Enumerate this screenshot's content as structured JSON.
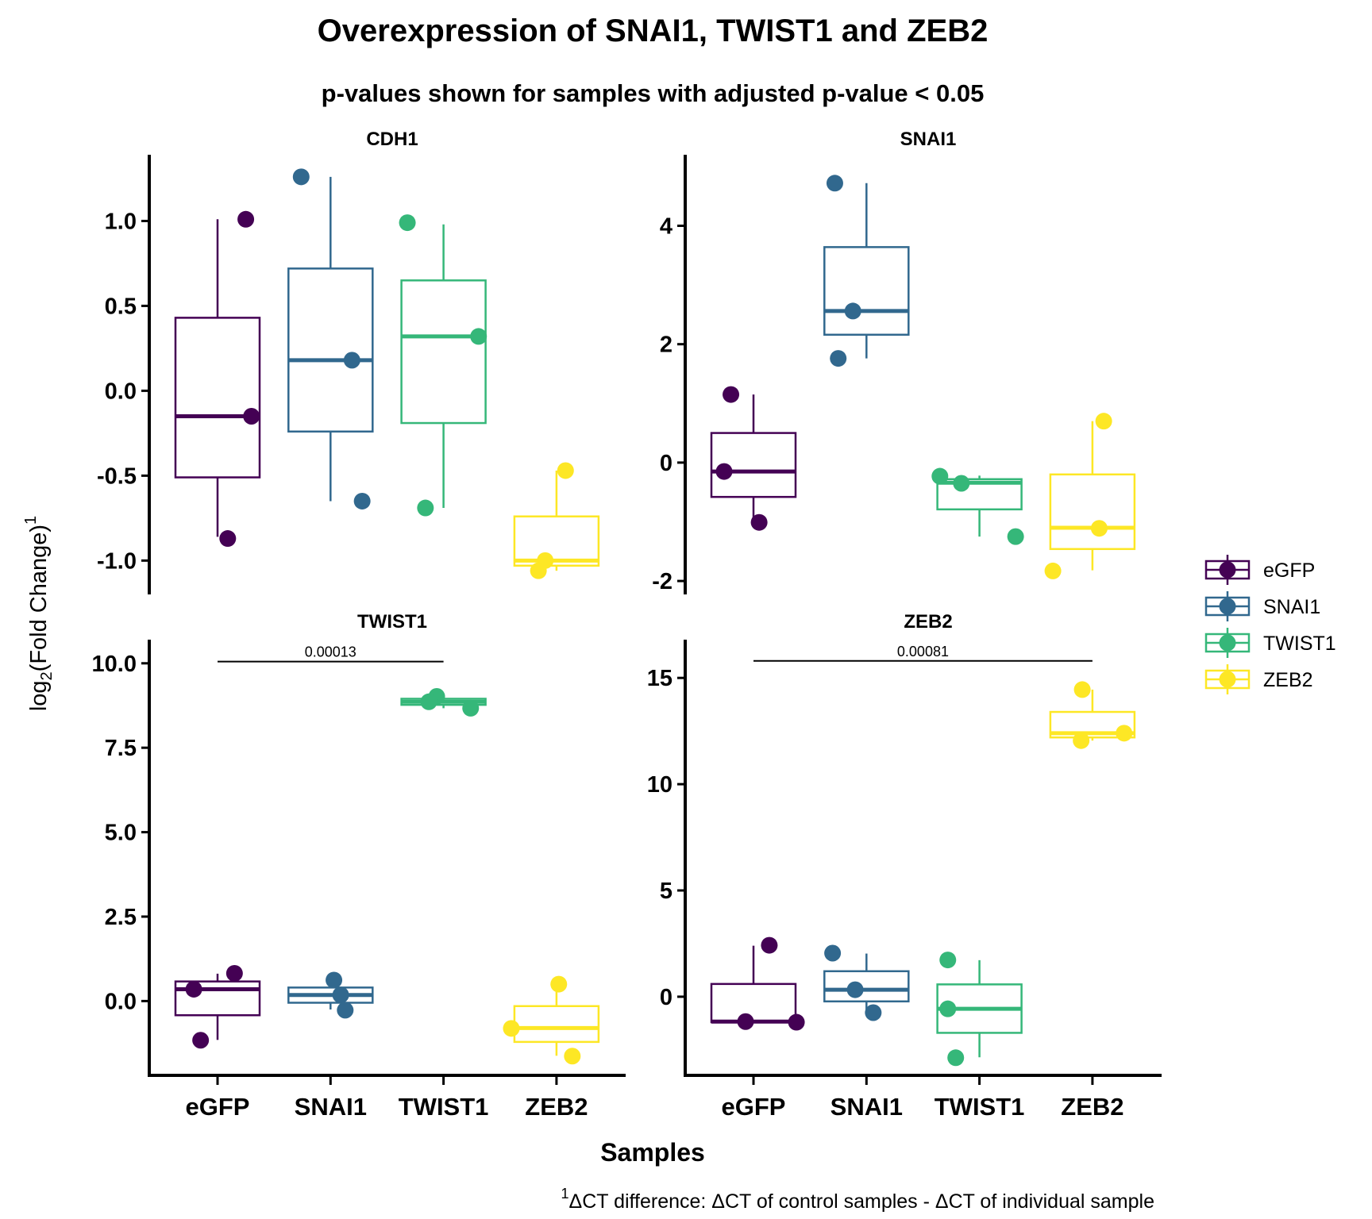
{
  "chart_data": {
    "type": "box",
    "title": "Overexpression of SNAI1, TWIST1 and ZEB2",
    "subtitle": "p-values shown for samples with adjusted p-value < 0.05",
    "xlabel": "Samples",
    "ylabel": {
      "prefix": "log",
      "sub": "2",
      "main": "(Fold Change)",
      "sup": "1"
    },
    "caption": {
      "sup": "1",
      "text": "ΔCT difference: ΔCT of control samples - ΔCT of individual sample"
    },
    "categories": [
      "eGFP",
      "SNAI1",
      "TWIST1",
      "ZEB2"
    ],
    "colors": {
      "eGFP": "#440154",
      "SNAI1": "#31688E",
      "TWIST1": "#35B779",
      "ZEB2": "#FDE725"
    },
    "legend": {
      "position": "right",
      "entries": [
        "eGFP",
        "SNAI1",
        "TWIST1",
        "ZEB2"
      ]
    },
    "panels": [
      {
        "name": "CDH1",
        "ylim": [
          -1.19,
          1.39
        ],
        "yticks": [
          -1.0,
          -0.5,
          0.0,
          0.5,
          1.0
        ],
        "ytick_labels": [
          "-1.0",
          "-0.5",
          "0.0",
          "0.5",
          "1.0"
        ],
        "boxes": [
          {
            "group": "eGFP",
            "min": -0.86,
            "q1": -0.51,
            "median": -0.15,
            "q3": 0.43,
            "max": 1.01
          },
          {
            "group": "SNAI1",
            "min": -0.65,
            "q1": -0.24,
            "median": 0.18,
            "q3": 0.72,
            "max": 1.26
          },
          {
            "group": "TWIST1",
            "min": -0.69,
            "q1": -0.19,
            "median": 0.32,
            "q3": 0.65,
            "max": 0.98
          },
          {
            "group": "ZEB2",
            "min": -1.06,
            "q1": -1.03,
            "median": -1.0,
            "q3": -0.74,
            "max": -0.47
          }
        ],
        "points": [
          {
            "group": "eGFP",
            "jitter": 0.25,
            "y": 1.01
          },
          {
            "group": "eGFP",
            "jitter": 0.3,
            "y": -0.15
          },
          {
            "group": "eGFP",
            "jitter": 0.09,
            "y": -0.87
          },
          {
            "group": "SNAI1",
            "jitter": -0.26,
            "y": 1.26
          },
          {
            "group": "SNAI1",
            "jitter": 0.19,
            "y": 0.18
          },
          {
            "group": "SNAI1",
            "jitter": 0.28,
            "y": -0.65
          },
          {
            "group": "TWIST1",
            "jitter": -0.32,
            "y": 0.99
          },
          {
            "group": "TWIST1",
            "jitter": 0.31,
            "y": 0.32
          },
          {
            "group": "TWIST1",
            "jitter": -0.16,
            "y": -0.69
          },
          {
            "group": "ZEB2",
            "jitter": 0.08,
            "y": -0.47
          },
          {
            "group": "ZEB2",
            "jitter": -0.1,
            "y": -1.0
          },
          {
            "group": "ZEB2",
            "jitter": -0.16,
            "y": -1.06
          }
        ]
      },
      {
        "name": "SNAI1",
        "ylim": [
          -2.2,
          5.2
        ],
        "yticks": [
          -2,
          0,
          2,
          4
        ],
        "ytick_labels": [
          "-2",
          "0",
          "2",
          "4"
        ],
        "boxes": [
          {
            "group": "eGFP",
            "min": -1.0,
            "q1": -0.58,
            "median": -0.15,
            "q3": 0.5,
            "max": 1.15
          },
          {
            "group": "SNAI1",
            "min": 1.76,
            "q1": 2.16,
            "median": 2.56,
            "q3": 3.64,
            "max": 4.72
          },
          {
            "group": "TWIST1",
            "min": -1.25,
            "q1": -0.79,
            "median": -0.34,
            "q3": -0.28,
            "max": -0.22
          },
          {
            "group": "ZEB2",
            "min": -1.82,
            "q1": -1.46,
            "median": -1.1,
            "q3": -0.2,
            "max": 0.7
          }
        ],
        "points": [
          {
            "group": "eGFP",
            "jitter": -0.2,
            "y": 1.15
          },
          {
            "group": "eGFP",
            "jitter": -0.26,
            "y": -0.15
          },
          {
            "group": "eGFP",
            "jitter": 0.05,
            "y": -1.01
          },
          {
            "group": "SNAI1",
            "jitter": -0.28,
            "y": 4.72
          },
          {
            "group": "SNAI1",
            "jitter": -0.12,
            "y": 2.56
          },
          {
            "group": "SNAI1",
            "jitter": -0.25,
            "y": 1.76
          },
          {
            "group": "TWIST1",
            "jitter": -0.35,
            "y": -0.23
          },
          {
            "group": "TWIST1",
            "jitter": -0.16,
            "y": -0.35
          },
          {
            "group": "TWIST1",
            "jitter": 0.32,
            "y": -1.25
          },
          {
            "group": "ZEB2",
            "jitter": 0.1,
            "y": 0.7
          },
          {
            "group": "ZEB2",
            "jitter": 0.06,
            "y": -1.11
          },
          {
            "group": "ZEB2",
            "jitter": -0.35,
            "y": -1.83
          }
        ]
      },
      {
        "name": "TWIST1",
        "ylim": [
          -2.2,
          10.7
        ],
        "yticks": [
          0.0,
          2.5,
          5.0,
          7.5,
          10.0
        ],
        "ytick_labels": [
          "0.0",
          "2.5",
          "5.0",
          "7.5",
          "10.0"
        ],
        "comparison": {
          "from": "eGFP",
          "to": "TWIST1",
          "y": 10.05,
          "label": "0.00013"
        },
        "boxes": [
          {
            "group": "eGFP",
            "min": -1.15,
            "q1": -0.42,
            "median": 0.35,
            "q3": 0.58,
            "max": 0.81
          },
          {
            "group": "SNAI1",
            "min": -0.25,
            "q1": -0.05,
            "median": 0.18,
            "q3": 0.4,
            "max": 0.62
          },
          {
            "group": "TWIST1",
            "min": 8.67,
            "q1": 8.77,
            "median": 8.86,
            "q3": 8.95,
            "max": 9.02
          },
          {
            "group": "ZEB2",
            "min": -1.62,
            "q1": -1.21,
            "median": -0.8,
            "q3": -0.15,
            "max": 0.5
          }
        ],
        "points": [
          {
            "group": "eGFP",
            "jitter": 0.15,
            "y": 0.82
          },
          {
            "group": "eGFP",
            "jitter": -0.21,
            "y": 0.35
          },
          {
            "group": "eGFP",
            "jitter": -0.15,
            "y": -1.16
          },
          {
            "group": "SNAI1",
            "jitter": 0.03,
            "y": 0.62
          },
          {
            "group": "SNAI1",
            "jitter": 0.09,
            "y": 0.18
          },
          {
            "group": "SNAI1",
            "jitter": 0.13,
            "y": -0.27
          },
          {
            "group": "TWIST1",
            "jitter": -0.06,
            "y": 9.02
          },
          {
            "group": "TWIST1",
            "jitter": -0.13,
            "y": 8.86
          },
          {
            "group": "TWIST1",
            "jitter": 0.24,
            "y": 8.67
          },
          {
            "group": "ZEB2",
            "jitter": 0.02,
            "y": 0.5
          },
          {
            "group": "ZEB2",
            "jitter": -0.4,
            "y": -0.81
          },
          {
            "group": "ZEB2",
            "jitter": 0.14,
            "y": -1.63
          }
        ]
      },
      {
        "name": "ZEB2",
        "ylim": [
          -3.7,
          16.8
        ],
        "yticks": [
          0,
          5,
          10,
          15
        ],
        "ytick_labels": [
          "0",
          "5",
          "10",
          "15"
        ],
        "comparison": {
          "from": "eGFP",
          "to": "ZEB2",
          "y": 15.8,
          "label": "0.00081"
        },
        "boxes": [
          {
            "group": "eGFP",
            "min": -1.2,
            "q1": -1.2,
            "median": -1.17,
            "q3": 0.6,
            "max": 2.4
          },
          {
            "group": "SNAI1",
            "min": -0.74,
            "q1": -0.22,
            "median": 0.33,
            "q3": 1.2,
            "max": 2.03
          },
          {
            "group": "TWIST1",
            "min": -2.85,
            "q1": -1.7,
            "median": -0.57,
            "q3": 0.58,
            "max": 1.72
          },
          {
            "group": "ZEB2",
            "min": 12.05,
            "q1": 12.2,
            "median": 12.4,
            "q3": 13.4,
            "max": 14.45
          }
        ],
        "points": [
          {
            "group": "eGFP",
            "jitter": 0.14,
            "y": 2.42
          },
          {
            "group": "eGFP",
            "jitter": -0.07,
            "y": -1.17
          },
          {
            "group": "eGFP",
            "jitter": 0.38,
            "y": -1.2
          },
          {
            "group": "SNAI1",
            "jitter": -0.3,
            "y": 2.05
          },
          {
            "group": "SNAI1",
            "jitter": -0.1,
            "y": 0.33
          },
          {
            "group": "SNAI1",
            "jitter": 0.06,
            "y": -0.75
          },
          {
            "group": "TWIST1",
            "jitter": -0.28,
            "y": 1.73
          },
          {
            "group": "TWIST1",
            "jitter": -0.28,
            "y": -0.57
          },
          {
            "group": "TWIST1",
            "jitter": -0.21,
            "y": -2.87
          },
          {
            "group": "ZEB2",
            "jitter": -0.09,
            "y": 14.45
          },
          {
            "group": "ZEB2",
            "jitter": -0.1,
            "y": 12.05
          },
          {
            "group": "ZEB2",
            "jitter": 0.28,
            "y": 12.4
          }
        ]
      }
    ]
  }
}
